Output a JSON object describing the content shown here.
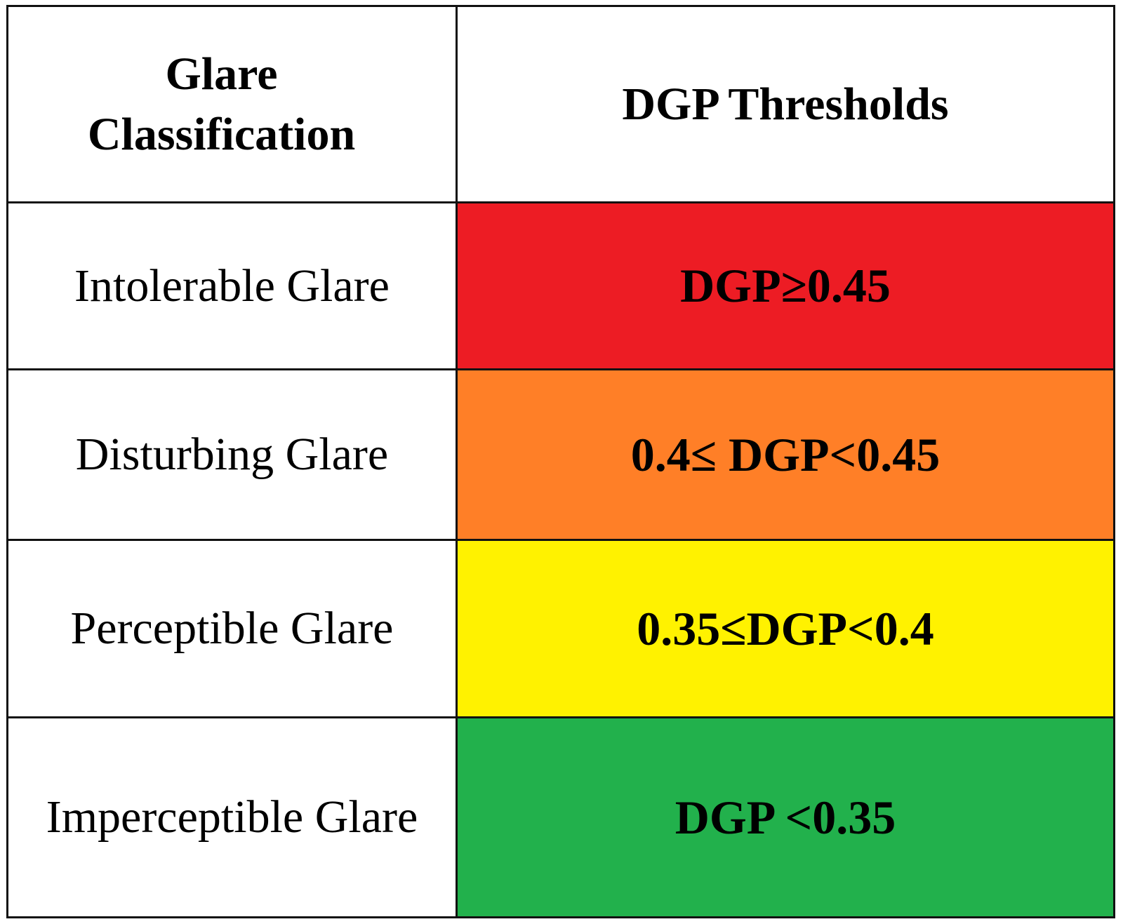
{
  "header": {
    "columns": [
      "Glare Classification",
      "DGP Thresholds"
    ]
  },
  "table": {
    "rows": [
      [
        "Intolerable Glare",
        "DGP≥0.45"
      ],
      [
        "Disturbing Glare",
        "0.4≤ DGP<0.45"
      ],
      [
        "Perceptible Glare",
        "0.35≤DGP<0.4"
      ],
      [
        "Imperceptible Glare",
        "DGP <0.35"
      ]
    ]
  }
}
